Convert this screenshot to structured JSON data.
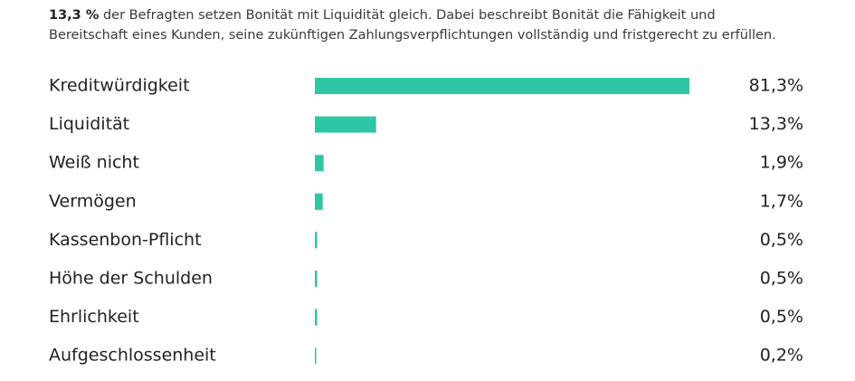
{
  "intro": {
    "highlight": "13,3 %",
    "line1_rest": " der Befragten setzen Bonität mit Liquidität gleich. Dabei beschreibt Bonität die Fähigkeit und",
    "line2": "Bereitschaft eines Kunden, seine zukünftigen Zahlungsverpflichtungen vollständig und fristgerecht zu erfüllen."
  },
  "chart_data": {
    "type": "bar",
    "orientation": "horizontal",
    "color": "#2fc6a6",
    "categories": [
      "Kreditwürdigkeit",
      "Liquidität",
      "Weiß nicht",
      "Vermögen",
      "Kassenbon-Pflicht",
      "Höhe der Schulden",
      "Ehrlichkeit",
      "Aufgeschlossenheit"
    ],
    "values": [
      81.3,
      13.3,
      1.9,
      1.7,
      0.5,
      0.5,
      0.5,
      0.2
    ],
    "value_labels": [
      "81,3%",
      "13,3%",
      "1,9%",
      "1,7%",
      "0,5%",
      "0,5%",
      "0,5%",
      "0,2%"
    ]
  }
}
